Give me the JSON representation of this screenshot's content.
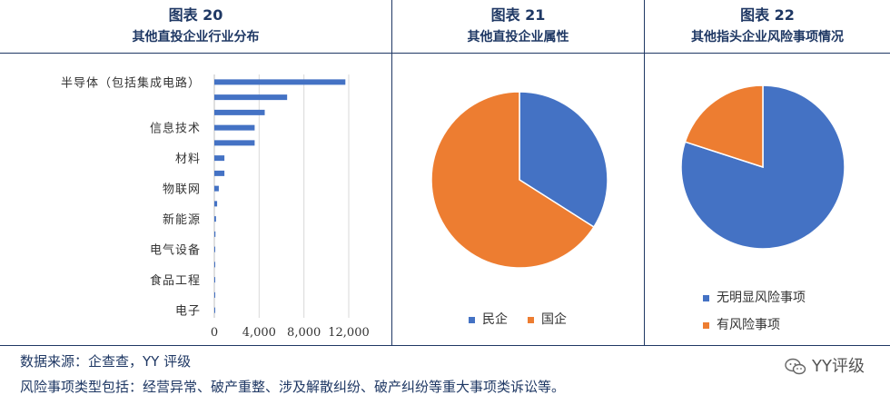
{
  "panels": {
    "p1": {
      "num": "图表 20",
      "sub": "其他直投企业行业分布"
    },
    "p2": {
      "num": "图表 21",
      "sub": "其他直投企业属性"
    },
    "p3": {
      "num": "图表 22",
      "sub": "其他指头企业风险事项情况"
    }
  },
  "chart_data": [
    {
      "type": "bar",
      "orientation": "horizontal",
      "title": "其他直投企业行业分布",
      "categories": [
        "半导体（包括集成电路）",
        "",
        "",
        "信息技术",
        "",
        "材料",
        "",
        "物联网",
        "",
        "新能源",
        "",
        "电气设备",
        "",
        "食品工程",
        "",
        "电子"
      ],
      "values": [
        11700,
        6500,
        4500,
        3600,
        3600,
        900,
        900,
        400,
        250,
        150,
        100,
        80,
        60,
        40,
        30,
        20
      ],
      "xlim": [
        0,
        12000
      ],
      "xticks": [
        "0",
        "4,000",
        "8,000",
        "12,000"
      ],
      "grid": true,
      "color": "#4472c4"
    },
    {
      "type": "pie",
      "title": "其他直投企业属性",
      "labels": [
        "民企",
        "国企"
      ],
      "values": [
        34,
        66
      ],
      "colors": [
        "#4472c4",
        "#ed7d31"
      ],
      "legend": "bottom"
    },
    {
      "type": "pie",
      "title": "其他指头企业风险事项情况",
      "labels": [
        "无明显风险事项",
        "有风险事项"
      ],
      "values": [
        80,
        20
      ],
      "colors": [
        "#4472c4",
        "#ed7d31"
      ],
      "legend": "bottom"
    }
  ],
  "footer": {
    "source": "数据来源：企查查，YY 评级",
    "note": "风险事项类型包括：经营异常、破产重整、涉及解散纠纷、破产纠纷等重大事项类诉讼等。",
    "brand": "YY评级",
    "brand_icon": "wechat-icon"
  }
}
